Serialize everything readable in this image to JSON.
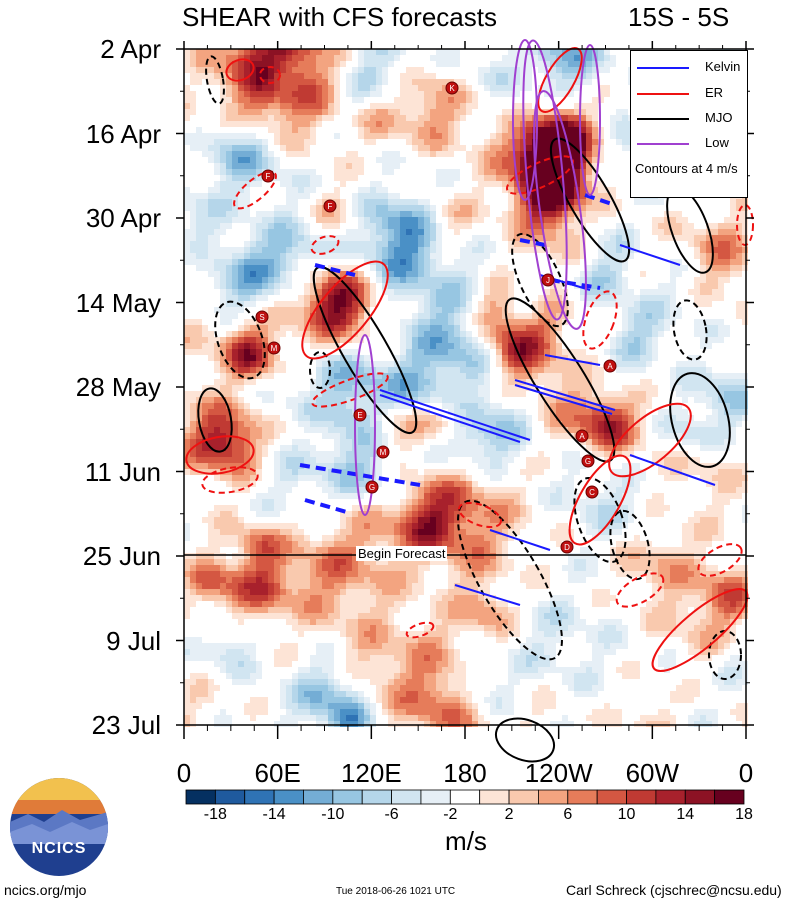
{
  "title": {
    "left": "SHEAR with CFS forecasts",
    "right": "15S - 5S"
  },
  "chart_data": {
    "type": "heatmap",
    "title": "SHEAR with CFS forecasts",
    "subtitle": "15S - 5S",
    "x_ticks": [
      "0",
      "60E",
      "120E",
      "180",
      "120W",
      "60W",
      "0"
    ],
    "x_range": [
      0,
      360
    ],
    "y_ticks": [
      "2 Apr",
      "16 Apr",
      "30 Apr",
      "14 May",
      "28 May",
      "11 Jun",
      "25 Jun",
      "9 Jul",
      "23 Jul"
    ],
    "y_range": [
      "2018-04-02",
      "2018-07-23"
    ],
    "colorbar": {
      "unit": "m/s",
      "tick_labels": [
        "-18",
        "-14",
        "-10",
        "-6",
        "-2",
        "2",
        "6",
        "10",
        "14",
        "18"
      ],
      "levels": [
        -22,
        -18,
        -16,
        -14,
        -12,
        -10,
        -8,
        -6,
        -4,
        -2,
        2,
        4,
        6,
        8,
        10,
        12,
        14,
        16,
        18,
        22
      ],
      "colors": [
        "#053061",
        "#1f5a9e",
        "#2f73b5",
        "#4a90c6",
        "#74add5",
        "#97c6e2",
        "#b5d6ea",
        "#d1e5f1",
        "#e6eff6",
        "#ffffff",
        "#fde4d6",
        "#f9c9ae",
        "#f3a480",
        "#e67c5a",
        "#d45742",
        "#c03a33",
        "#a8212c",
        "#8c1224",
        "#67001f"
      ]
    },
    "legend": {
      "placement": "top-right",
      "entries": [
        {
          "name": "Kelvin",
          "color": "#1a1aff"
        },
        {
          "name": "ER",
          "color": "#ee1111"
        },
        {
          "name": "MJO",
          "color": "#000000"
        },
        {
          "name": "Low",
          "color": "#a040d0"
        }
      ],
      "note": "Contours at 4 m/s"
    },
    "annotation": "Begin Forecast",
    "storm_markers": [
      "K",
      "F",
      "F",
      "S",
      "M",
      "E",
      "M",
      "G",
      "J",
      "A",
      "A",
      "G",
      "C",
      "D"
    ]
  },
  "footer": {
    "left": "ncics.org/mjo",
    "middle": "Tue 2018-06-26 1021 UTC",
    "right": "Carl Schreck (cjschrec@ncsu.edu)"
  },
  "logo": {
    "text": "NCICS",
    "colors": [
      "#1f3f8f",
      "#f2c14e",
      "#e07b39"
    ]
  }
}
